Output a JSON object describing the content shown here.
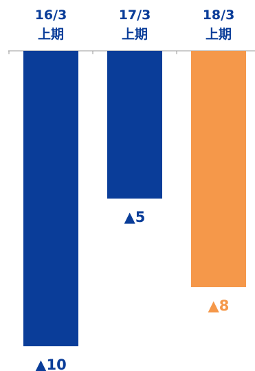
{
  "chart_data": {
    "type": "bar",
    "categories": [
      {
        "line1": "16/3",
        "line2": "上期"
      },
      {
        "line1": "17/3",
        "line2": "上期"
      },
      {
        "line1": "18/3",
        "line2": "上期"
      }
    ],
    "values": [
      -10,
      -5,
      -8
    ],
    "value_labels": [
      "▲10",
      "▲5",
      "▲8"
    ],
    "ylim": [
      -10,
      0
    ],
    "grid": false,
    "colors": {
      "bars": [
        "#0a3d99",
        "#0a3d99",
        "#f5984a"
      ],
      "labels": [
        "#0a3d99",
        "#0a3d99",
        "#f5984a"
      ],
      "axis": "#999999"
    }
  }
}
